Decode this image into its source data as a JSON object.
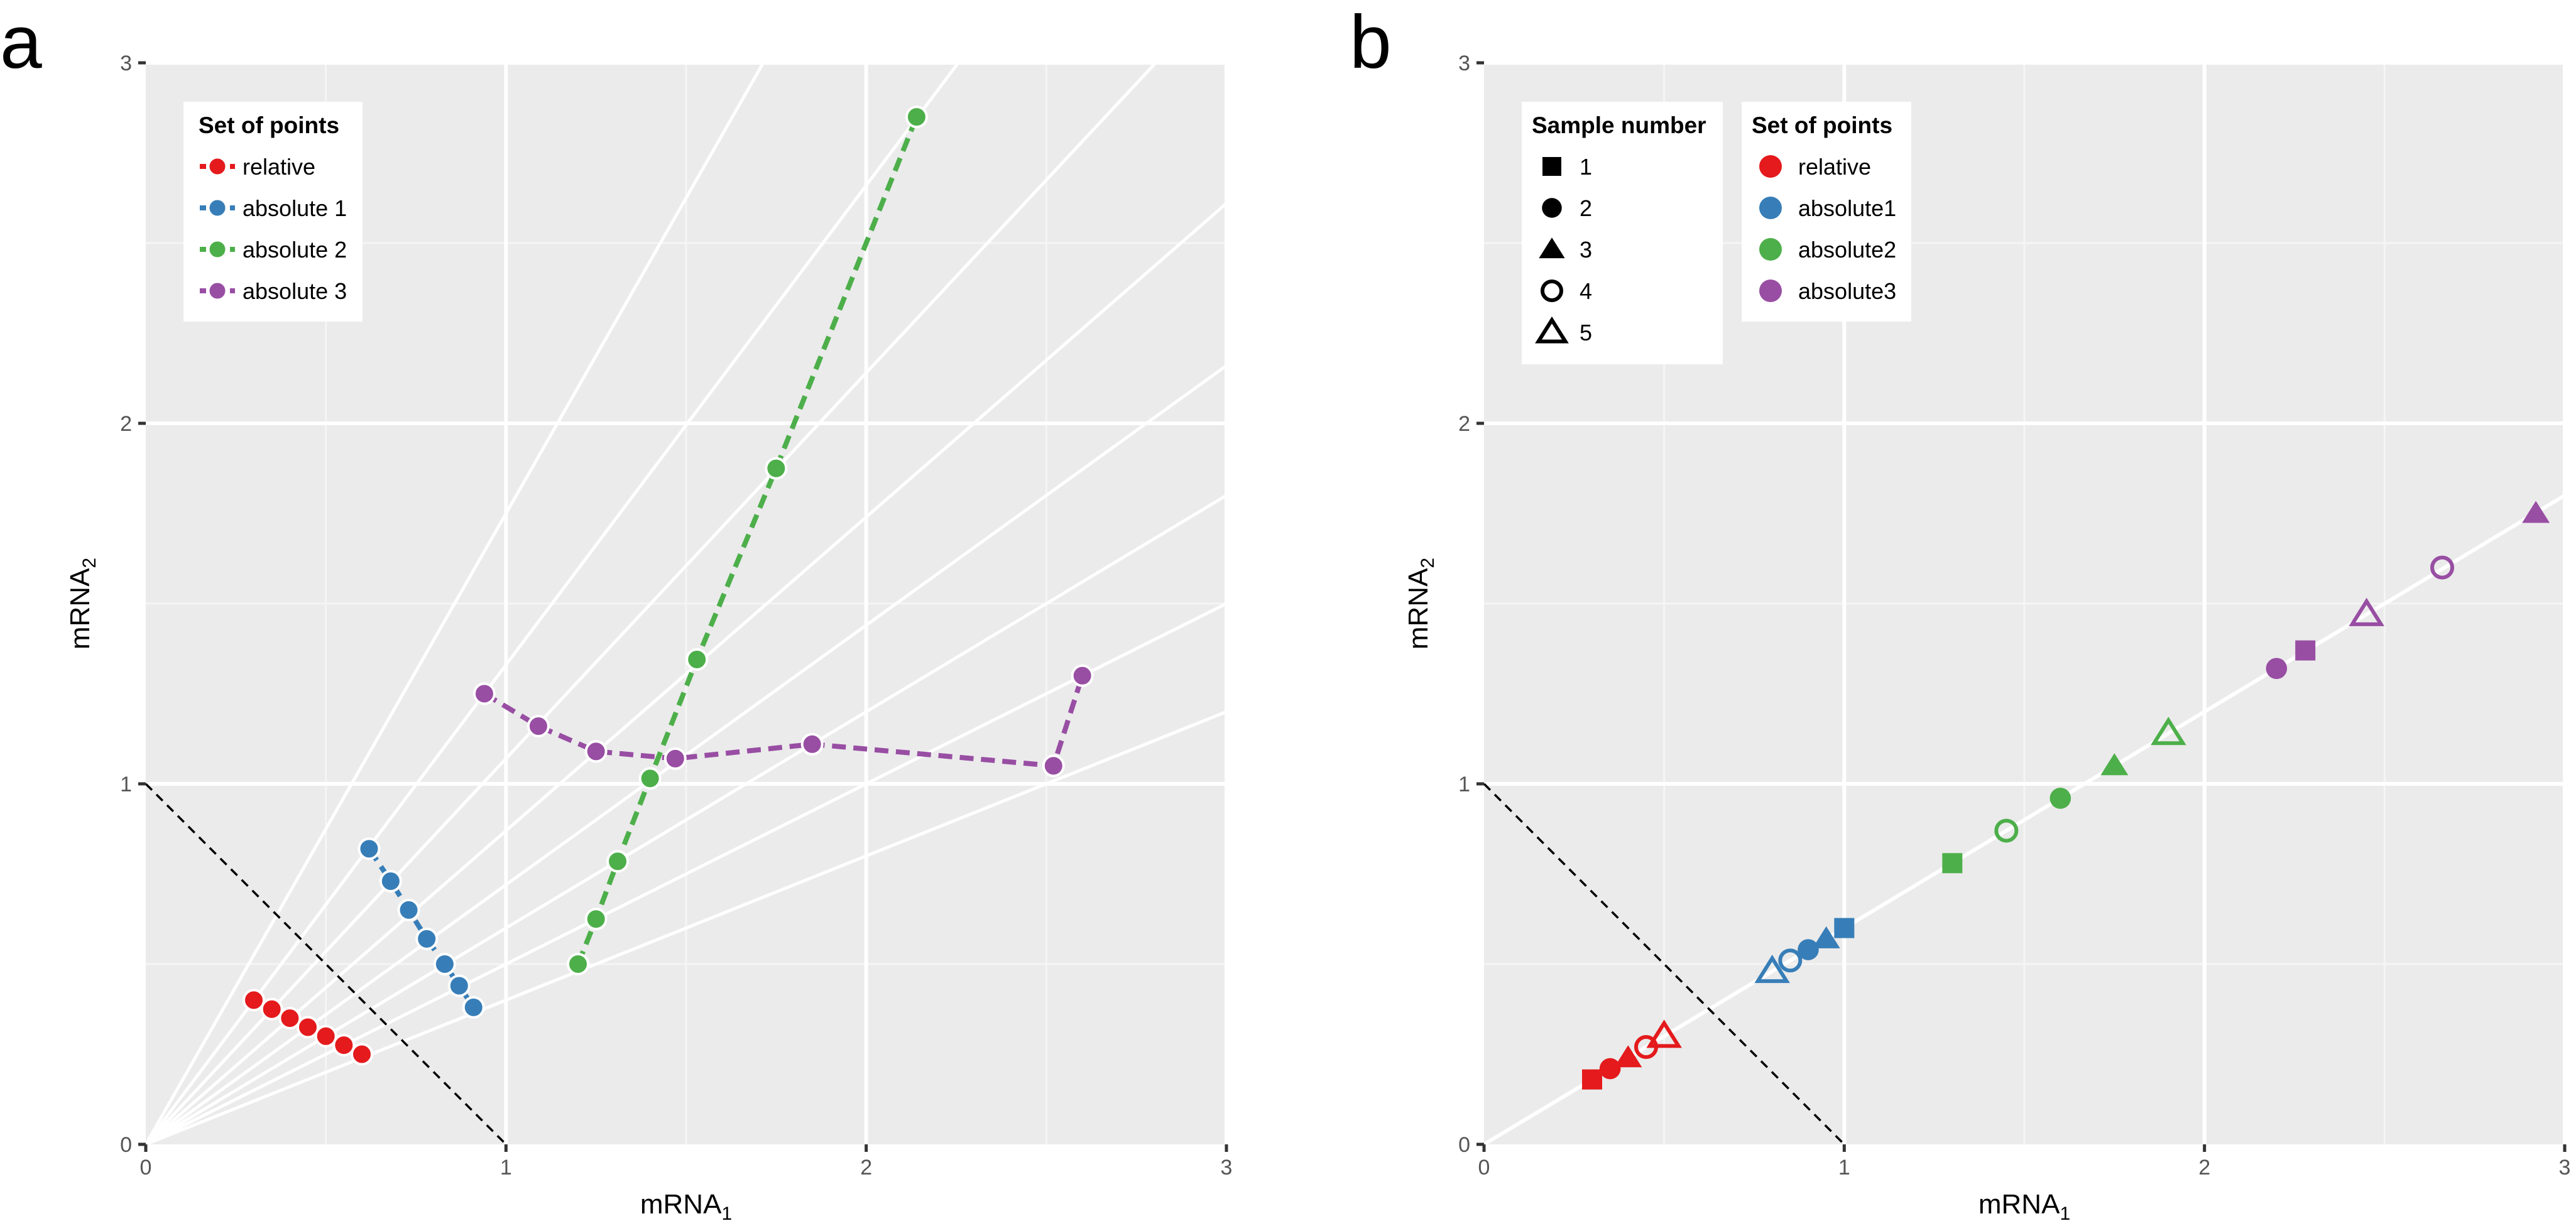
{
  "chart_data": [
    {
      "panel_label": "a",
      "type": "scatter",
      "xlabel": "mRNA",
      "xlabel_sub": "1",
      "ylabel": "mRNA",
      "ylabel_sub": "2",
      "xlim": [
        0,
        3
      ],
      "ylim": [
        0,
        3
      ],
      "xticks": [
        "0",
        "1",
        "2",
        "3"
      ],
      "yticks": [
        "0",
        "1",
        "2",
        "3"
      ],
      "grid": true,
      "reference_line": {
        "style": "dashed",
        "from": [
          0,
          1
        ],
        "to": [
          1,
          0
        ]
      },
      "ray_slopes": [
        0.4,
        0.5,
        0.6,
        0.72,
        0.87,
        1.07,
        1.33,
        1.75
      ],
      "legend": {
        "title": "Set of points",
        "placement": "top-left"
      },
      "series": [
        {
          "name": "relative",
          "color": "#e41a1c",
          "points": [
            [
              0.3,
              0.4
            ],
            [
              0.35,
              0.375
            ],
            [
              0.4,
              0.35
            ],
            [
              0.45,
              0.325
            ],
            [
              0.5,
              0.3
            ],
            [
              0.55,
              0.275
            ],
            [
              0.6,
              0.25
            ]
          ]
        },
        {
          "name": "absolute 1",
          "color": "#377eb8",
          "points": [
            [
              0.62,
              0.82
            ],
            [
              0.68,
              0.73
            ],
            [
              0.73,
              0.65
            ],
            [
              0.78,
              0.57
            ],
            [
              0.83,
              0.5
            ],
            [
              0.87,
              0.44
            ],
            [
              0.91,
              0.38
            ]
          ]
        },
        {
          "name": "absolute 2",
          "color": "#4daf4a",
          "points": [
            [
              1.2,
              0.5
            ],
            [
              1.25,
              0.625
            ],
            [
              1.31,
              0.785
            ],
            [
              1.4,
              1.015
            ],
            [
              1.53,
              1.345
            ],
            [
              1.75,
              1.875
            ],
            [
              2.14,
              2.85
            ]
          ]
        },
        {
          "name": "absolute 3",
          "color": "#984ea3",
          "points": [
            [
              0.94,
              1.25
            ],
            [
              1.09,
              1.16
            ],
            [
              1.25,
              1.09
            ],
            [
              1.47,
              1.07
            ],
            [
              1.85,
              1.11
            ],
            [
              2.52,
              1.05
            ],
            [
              2.6,
              1.3
            ]
          ]
        }
      ]
    },
    {
      "panel_label": "b",
      "type": "scatter",
      "xlabel": "mRNA",
      "xlabel_sub": "1",
      "ylabel": "mRNA",
      "ylabel_sub": "2",
      "xlim": [
        0,
        3
      ],
      "ylim": [
        0,
        3
      ],
      "xticks": [
        "0",
        "1",
        "2",
        "3"
      ],
      "yticks": [
        "0",
        "1",
        "2",
        "3"
      ],
      "grid": true,
      "reference_line": {
        "style": "dashed",
        "from": [
          0,
          1
        ],
        "to": [
          1,
          0
        ]
      },
      "fit_line": {
        "slope": 0.6,
        "intercept": 0
      },
      "legend_shapes": {
        "title": "Sample number",
        "items": [
          {
            "label": "1",
            "shape": "square"
          },
          {
            "label": "2",
            "shape": "circle"
          },
          {
            "label": "3",
            "shape": "triangle"
          },
          {
            "label": "4",
            "shape": "open-circle"
          },
          {
            "label": "5",
            "shape": "open-triangle"
          }
        ]
      },
      "legend_colors": {
        "title": "Set of points",
        "items": [
          {
            "label": "relative",
            "color": "#e41a1c"
          },
          {
            "label": "absolute1",
            "color": "#377eb8"
          },
          {
            "label": "absolute2",
            "color": "#4daf4a"
          },
          {
            "label": "absolute3",
            "color": "#984ea3"
          }
        ]
      },
      "series": [
        {
          "name": "relative",
          "color": "#e41a1c",
          "points": [
            [
              0.3,
              0.18,
              1
            ],
            [
              0.35,
              0.21,
              2
            ],
            [
              0.4,
              0.24,
              3
            ],
            [
              0.45,
              0.27,
              4
            ],
            [
              0.5,
              0.3,
              5
            ]
          ]
        },
        {
          "name": "absolute1",
          "color": "#377eb8",
          "points": [
            [
              1.0,
              0.6,
              1
            ],
            [
              0.9,
              0.54,
              2
            ],
            [
              0.95,
              0.57,
              3
            ],
            [
              0.85,
              0.51,
              4
            ],
            [
              0.8,
              0.48,
              5
            ]
          ]
        },
        {
          "name": "absolute2",
          "color": "#4daf4a",
          "points": [
            [
              1.3,
              0.78,
              1
            ],
            [
              1.6,
              0.96,
              2
            ],
            [
              1.75,
              1.05,
              3
            ],
            [
              1.45,
              0.87,
              4
            ],
            [
              1.9,
              1.14,
              5
            ]
          ]
        },
        {
          "name": "absolute3",
          "color": "#984ea3",
          "points": [
            [
              2.28,
              1.37,
              1
            ],
            [
              2.2,
              1.32,
              2
            ],
            [
              2.92,
              1.75,
              3
            ],
            [
              2.66,
              1.6,
              4
            ],
            [
              2.45,
              1.47,
              5
            ]
          ]
        }
      ]
    }
  ]
}
